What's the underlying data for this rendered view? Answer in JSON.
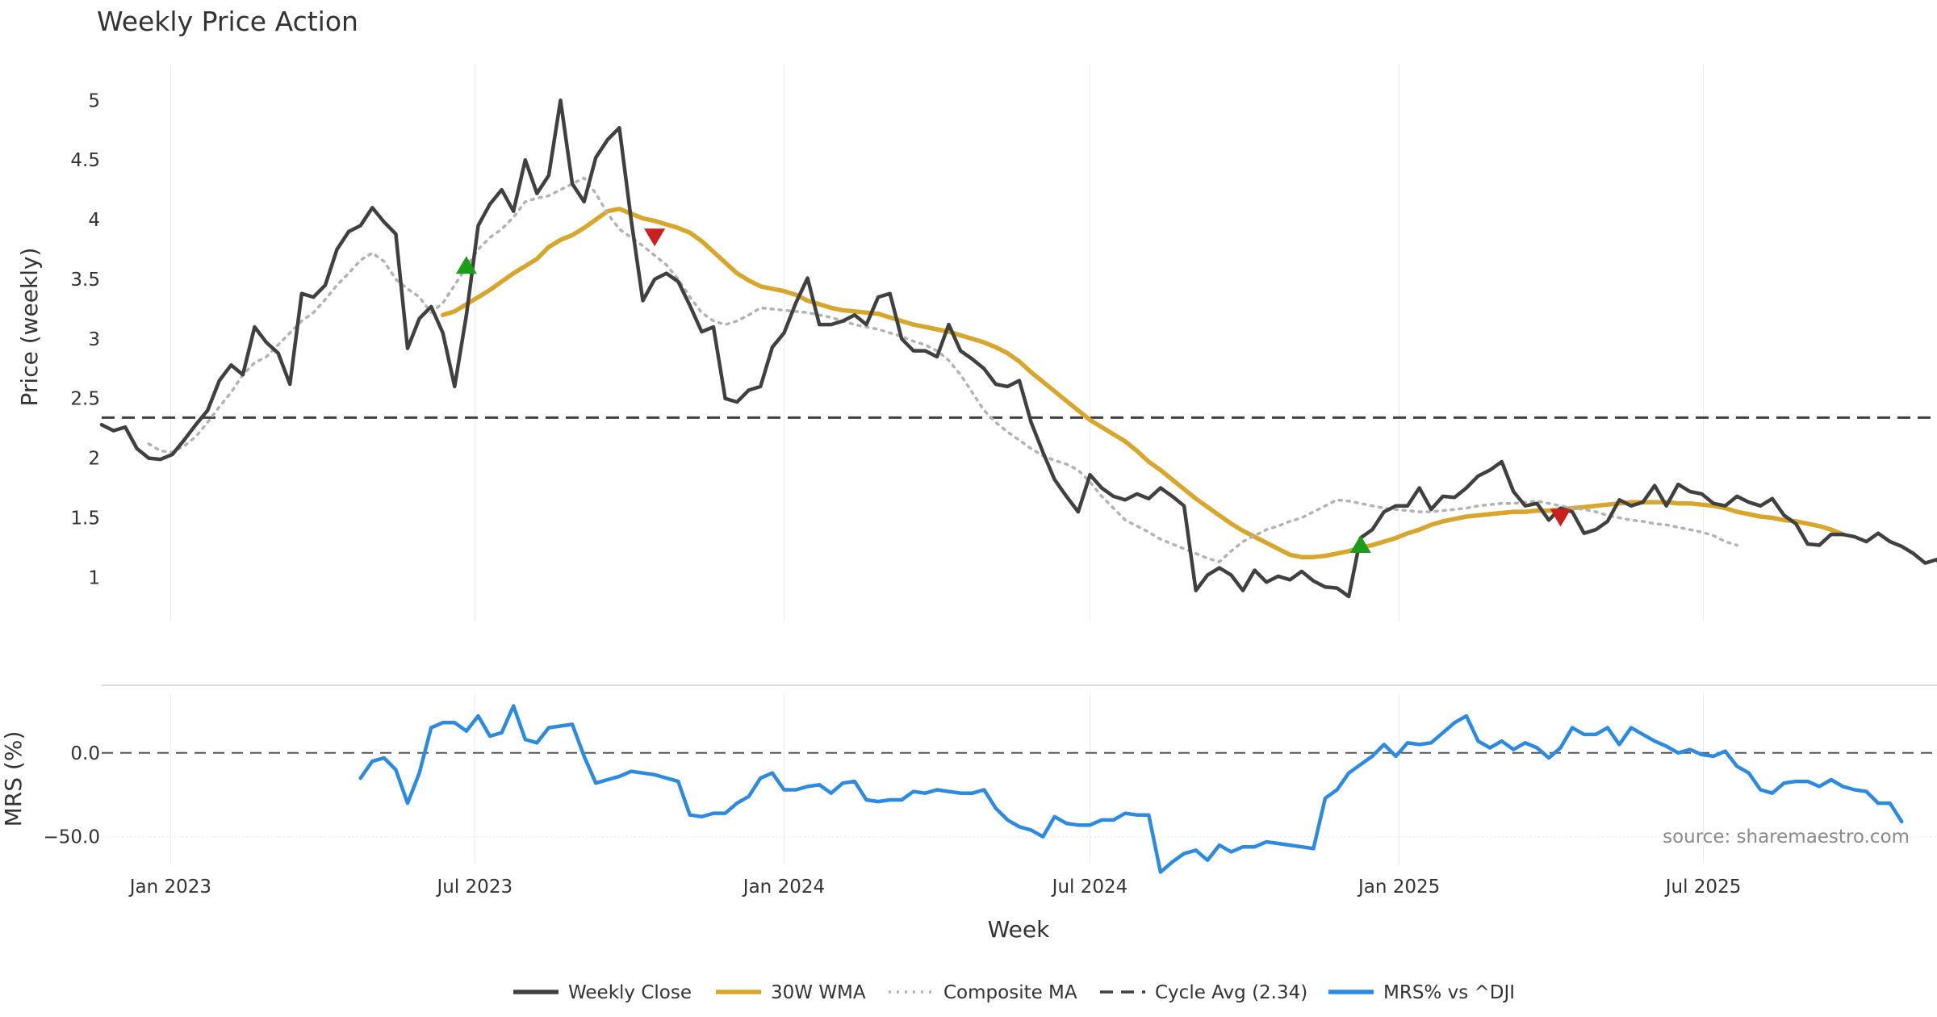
{
  "chart_data": {
    "type": "line",
    "title": "Weekly Price Action",
    "source_note": "source: sharemaestro.com",
    "xlabel": "Week",
    "x_start": "2022-11-21",
    "x_end": "2025-11-17",
    "x_ticks": [
      {
        "date": "2023-01-01",
        "label": "Jan 2023"
      },
      {
        "date": "2023-07-01",
        "label": "Jul 2023"
      },
      {
        "date": "2024-01-01",
        "label": "Jan 2024"
      },
      {
        "date": "2024-07-01",
        "label": "Jul 2024"
      },
      {
        "date": "2025-01-01",
        "label": "Jan 2025"
      },
      {
        "date": "2025-07-01",
        "label": "Jul 2025"
      }
    ],
    "price_panel": {
      "ylabel": "Price (weekly)",
      "ylim": [
        0.63,
        5.3
      ],
      "y_ticks": [
        {
          "value": 1,
          "label": "1"
        },
        {
          "value": 1.5,
          "label": "1.5"
        },
        {
          "value": 2,
          "label": "2"
        },
        {
          "value": 2.5,
          "label": "2.5"
        },
        {
          "value": 3,
          "label": "3"
        },
        {
          "value": 3.5,
          "label": "3.5"
        },
        {
          "value": 4,
          "label": "4"
        },
        {
          "value": 4.5,
          "label": "4.5"
        },
        {
          "value": 5,
          "label": "5"
        }
      ],
      "cycle_avg": 2.34,
      "series": [
        {
          "name": "Weekly Close",
          "color": "#404040",
          "style": "solid",
          "start": "2022-11-21",
          "values": [
            2.28,
            2.23,
            2.26,
            2.08,
            2.0,
            1.99,
            2.03,
            2.15,
            2.28,
            2.4,
            2.65,
            2.78,
            2.7,
            3.1,
            2.97,
            2.88,
            2.62,
            3.38,
            3.35,
            3.45,
            3.75,
            3.9,
            3.95,
            4.1,
            3.98,
            3.88,
            2.92,
            3.17,
            3.27,
            3.05,
            2.6,
            3.2,
            3.95,
            4.13,
            4.25,
            4.07,
            4.5,
            4.22,
            4.37,
            5.0,
            4.3,
            4.15,
            4.52,
            4.67,
            4.77,
            4.0,
            3.32,
            3.5,
            3.55,
            3.48,
            3.28,
            3.06,
            3.1,
            2.5,
            2.47,
            2.57,
            2.6,
            2.93,
            3.05,
            3.3,
            3.51,
            3.12,
            3.12,
            3.15,
            3.2,
            3.12,
            3.35,
            3.38,
            3.0,
            2.9,
            2.9,
            2.85,
            3.12,
            2.9,
            2.83,
            2.75,
            2.62,
            2.6,
            2.65,
            2.3,
            2.05,
            1.82,
            1.68,
            1.55,
            1.86,
            1.75,
            1.68,
            1.65,
            1.7,
            1.66,
            1.75,
            1.68,
            1.6,
            0.89,
            1.02,
            1.08,
            1.02,
            0.89,
            1.06,
            0.96,
            1.01,
            0.98,
            1.05,
            0.97,
            0.92,
            0.91,
            0.84,
            1.33,
            1.4,
            1.55,
            1.6,
            1.6,
            1.75,
            1.57,
            1.68,
            1.67,
            1.75,
            1.85,
            1.9,
            1.97,
            1.72,
            1.6,
            1.62,
            1.48,
            1.58,
            1.55,
            1.37,
            1.4,
            1.47,
            1.65,
            1.6,
            1.63,
            1.77,
            1.6,
            1.78,
            1.72,
            1.7,
            1.62,
            1.6,
            1.68,
            1.63,
            1.6,
            1.66,
            1.52,
            1.45,
            1.28,
            1.27,
            1.36,
            1.36,
            1.34,
            1.3,
            1.37,
            1.3,
            1.26,
            1.2,
            1.12,
            1.15,
            1.0
          ]
        },
        {
          "name": "30W WMA",
          "color": "#d8a62b",
          "style": "solid",
          "start": "2023-06-12",
          "values": [
            3.2,
            3.23,
            3.29,
            3.35,
            3.41,
            3.48,
            3.55,
            3.61,
            3.67,
            3.77,
            3.83,
            3.87,
            3.93,
            4.0,
            4.07,
            4.09,
            4.05,
            4.01,
            3.99,
            3.96,
            3.93,
            3.89,
            3.82,
            3.73,
            3.64,
            3.55,
            3.49,
            3.44,
            3.42,
            3.4,
            3.37,
            3.32,
            3.29,
            3.26,
            3.24,
            3.23,
            3.22,
            3.21,
            3.18,
            3.15,
            3.12,
            3.1,
            3.08,
            3.06,
            3.03,
            3.0,
            2.97,
            2.93,
            2.88,
            2.81,
            2.72,
            2.64,
            2.56,
            2.48,
            2.4,
            2.32,
            2.26,
            2.2,
            2.14,
            2.06,
            1.97,
            1.9,
            1.82,
            1.74,
            1.66,
            1.59,
            1.52,
            1.45,
            1.39,
            1.34,
            1.29,
            1.24,
            1.19,
            1.17,
            1.17,
            1.18,
            1.2,
            1.22,
            1.25,
            1.27,
            1.3,
            1.33,
            1.37,
            1.4,
            1.44,
            1.47,
            1.49,
            1.51,
            1.52,
            1.53,
            1.54,
            1.55,
            1.55,
            1.56,
            1.56,
            1.57,
            1.58,
            1.59,
            1.6,
            1.61,
            1.62,
            1.63,
            1.63,
            1.63,
            1.63,
            1.62,
            1.62,
            1.61,
            1.6,
            1.58,
            1.55,
            1.53,
            1.51,
            1.5,
            1.48,
            1.47,
            1.45,
            1.43,
            1.4,
            1.36
          ]
        },
        {
          "name": "Composite MA",
          "color": "#b3b3b3",
          "style": "dotted",
          "start": "2022-12-19",
          "values": [
            2.12,
            2.06,
            2.05,
            2.1,
            2.18,
            2.3,
            2.43,
            2.55,
            2.7,
            2.8,
            2.85,
            2.95,
            3.05,
            3.15,
            3.22,
            3.33,
            3.45,
            3.55,
            3.66,
            3.72,
            3.65,
            3.5,
            3.42,
            3.35,
            3.22,
            3.3,
            3.45,
            3.6,
            3.75,
            3.85,
            3.92,
            4.02,
            4.15,
            4.18,
            4.2,
            4.25,
            4.3,
            4.35,
            4.22,
            4.05,
            3.92,
            3.85,
            3.78,
            3.7,
            3.62,
            3.5,
            3.35,
            3.22,
            3.15,
            3.12,
            3.15,
            3.2,
            3.26,
            3.25,
            3.24,
            3.23,
            3.22,
            3.2,
            3.18,
            3.15,
            3.12,
            3.1,
            3.08,
            3.05,
            3.02,
            2.98,
            2.95,
            2.9,
            2.82,
            2.7,
            2.55,
            2.4,
            2.3,
            2.22,
            2.15,
            2.08,
            2.02,
            1.98,
            1.95,
            1.9,
            1.8,
            1.68,
            1.58,
            1.48,
            1.43,
            1.38,
            1.32,
            1.28,
            1.24,
            1.2,
            1.16,
            1.13,
            1.22,
            1.3,
            1.35,
            1.4,
            1.43,
            1.47,
            1.5,
            1.55,
            1.6,
            1.65,
            1.64,
            1.62,
            1.6,
            1.58,
            1.57,
            1.56,
            1.55,
            1.55,
            1.56,
            1.57,
            1.58,
            1.6,
            1.61,
            1.62,
            1.62,
            1.63,
            1.64,
            1.62,
            1.6,
            1.58,
            1.57,
            1.55,
            1.52,
            1.5,
            1.48,
            1.47,
            1.45,
            1.44,
            1.42,
            1.4,
            1.38,
            1.35,
            1.3,
            1.27
          ]
        }
      ],
      "markers": [
        {
          "type": "buy",
          "date": "2023-06-26",
          "value": 3.62,
          "color": "#1a9e1a"
        },
        {
          "type": "sell",
          "date": "2023-10-16",
          "value": 3.85,
          "color": "#cc1f1f"
        },
        {
          "type": "buy",
          "date": "2024-12-09",
          "value": 1.28,
          "color": "#1a9e1a"
        },
        {
          "type": "sell",
          "date": "2025-04-07",
          "value": 1.5,
          "color": "#cc1f1f"
        }
      ]
    },
    "mrs_panel": {
      "ylabel": "MRS (%)",
      "ylim": [
        -66,
        35
      ],
      "y_ticks": [
        {
          "value": 0,
          "label": "0.0"
        },
        {
          "value": -50,
          "label": "−50.0"
        }
      ],
      "zero_line": 0,
      "series": [
        {
          "name": "MRS% vs ^DJI",
          "color": "#2b8ae2",
          "style": "solid",
          "start": "2023-04-24",
          "values": [
            -15,
            -5,
            -3,
            -10,
            -30,
            -12,
            15,
            18,
            18,
            13,
            22,
            10,
            12,
            28,
            8,
            6,
            15,
            16,
            17,
            -2,
            -18,
            -16,
            -14,
            -11,
            -12,
            -13,
            -15,
            -17,
            -37,
            -38,
            -36,
            -36,
            -30,
            -26,
            -15,
            -12,
            -22,
            -22,
            -20,
            -19,
            -24,
            -18,
            -17,
            -28,
            -29,
            -28,
            -28,
            -23,
            -24,
            -22,
            -23,
            -24,
            -24,
            -22,
            -33,
            -40,
            -44,
            -46,
            -50,
            -38,
            -42,
            -43,
            -43,
            -40,
            -40,
            -36,
            -37,
            -37,
            -71,
            -65,
            -60,
            -58,
            -64,
            -55,
            -59,
            -56,
            -56,
            -53,
            -54,
            -55,
            -56,
            -57,
            -27,
            -22,
            -12,
            -7,
            -2,
            5,
            -2,
            6,
            5,
            6,
            12,
            18,
            22,
            7,
            3,
            7,
            2,
            6,
            3,
            -3,
            3,
            15,
            11,
            11,
            15,
            5,
            15,
            11,
            7,
            4,
            0,
            2,
            -1,
            -2,
            1,
            -8,
            -12,
            -22,
            -24,
            -18,
            -17,
            -17,
            -20,
            -16,
            -20,
            -22,
            -23,
            -30,
            -30,
            -41
          ]
        }
      ]
    },
    "legend": {
      "placement": "bottom-center",
      "entries": [
        {
          "label": "Weekly Close",
          "color": "#404040",
          "style": "solid"
        },
        {
          "label": "30W WMA",
          "color": "#d8a62b",
          "style": "solid"
        },
        {
          "label": "Composite MA",
          "color": "#b3b3b3",
          "style": "dotted"
        },
        {
          "label": "Cycle Avg (2.34)",
          "color": "#404040",
          "style": "dashed"
        },
        {
          "label": "MRS% vs ^DJI",
          "color": "#2b8ae2",
          "style": "solid"
        }
      ]
    }
  }
}
